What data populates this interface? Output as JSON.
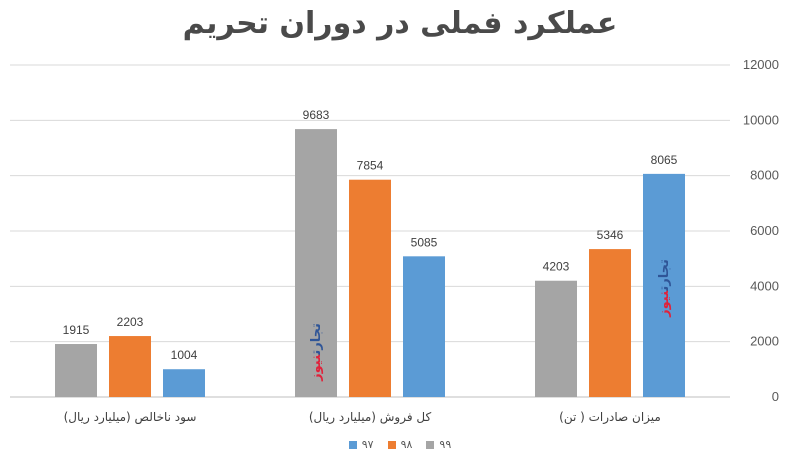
{
  "chart_data": {
    "type": "bar",
    "title": "عملکرد فملی در دوران تحریم",
    "categories": [
      "سود ناخالص (میلیارد ریال)",
      "کل فروش (میلیارد ریال)",
      "میزان صادرات ( تن)"
    ],
    "series": [
      {
        "name": "۹۹",
        "color": "#a5a5a5",
        "values": [
          1915,
          9683,
          4203
        ]
      },
      {
        "name": "۹۸",
        "color": "#ed7d31",
        "values": [
          2203,
          7854,
          5346
        ]
      },
      {
        "name": "۹۷",
        "color": "#5b9bd5",
        "values": [
          1004,
          5085,
          8065
        ]
      }
    ],
    "ylim": [
      0,
      12000
    ],
    "yticks": [
      0,
      2000,
      4000,
      6000,
      8000,
      10000,
      12000
    ],
    "y_axis_side": "right",
    "grid": true,
    "legend_position": "bottom",
    "xlabel": "",
    "ylabel": ""
  },
  "watermark": {
    "part1": "تجارت",
    "part2": "نیوز",
    "color1": "#2f5597",
    "color2": "#e0223b"
  }
}
